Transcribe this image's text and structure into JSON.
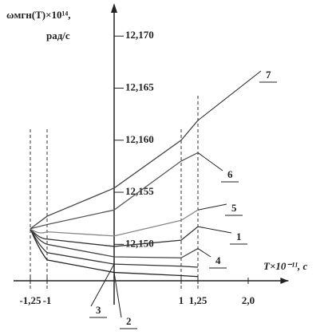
{
  "chart_data": {
    "type": "line",
    "y_label": "ωмгн(T)×10¹⁴,",
    "y_unit": "рад/с",
    "x_label": "T×10⁻¹¹,  c",
    "x": [
      -1.25,
      -1,
      0,
      1,
      1.25
    ],
    "series": [
      {
        "name": "1",
        "color": "#333333",
        "values": [
          12.1515,
          12.1505,
          12.1498,
          12.1504,
          12.1517
        ]
      },
      {
        "name": "2",
        "color": "#222222",
        "values": [
          12.1515,
          12.1485,
          12.1473,
          12.147,
          12.1469
        ]
      },
      {
        "name": "3",
        "color": "#333333",
        "values": [
          12.1515,
          12.1492,
          12.1481,
          12.1479,
          12.1478
        ]
      },
      {
        "name": "4",
        "color": "#444444",
        "values": [
          12.1515,
          12.15,
          12.1488,
          12.1487,
          12.1496
        ]
      },
      {
        "name": "5",
        "color": "#888888",
        "values": [
          12.1515,
          12.1512,
          12.1508,
          12.1523,
          12.1533
        ]
      },
      {
        "name": "6",
        "color": "#555555",
        "values": [
          12.1515,
          12.1519,
          12.1533,
          12.158,
          12.1588
        ]
      },
      {
        "name": "7",
        "color": "#444444",
        "values": [
          12.1515,
          12.1527,
          12.1554,
          12.16,
          12.1619
        ]
      }
    ],
    "xlim": [
      -1.5,
      2.6
    ],
    "ylim": [
      12.1465,
      12.1727
    ],
    "xticks": [
      {
        "value": -1.25,
        "label": "-1,25"
      },
      {
        "value": -1,
        "label": "-1"
      },
      {
        "value": 1,
        "label": "1"
      },
      {
        "value": 1.25,
        "label": "1,25"
      },
      {
        "value": 2.0,
        "label": "2,0"
      }
    ],
    "yticks": [
      {
        "value": 12.15,
        "label": "12,150"
      },
      {
        "value": 12.155,
        "label": "12,155"
      },
      {
        "value": 12.16,
        "label": "12,160"
      },
      {
        "value": 12.165,
        "label": "12,165"
      },
      {
        "value": 12.17,
        "label": "12,170"
      }
    ],
    "vlines": [
      -1.25,
      -1,
      1,
      1.25
    ]
  }
}
